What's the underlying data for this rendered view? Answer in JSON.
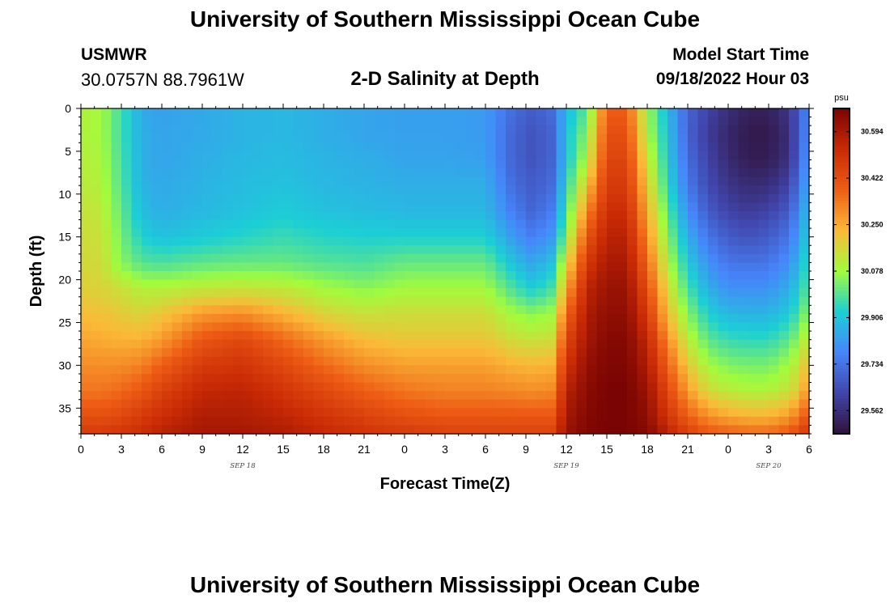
{
  "header": {
    "title": "University of Southern Mississippi Ocean Cube",
    "station": "USMWR",
    "coords": "30.0757N  88.7961W",
    "subtitle": "2-D Salinity at Depth",
    "start_label": "Model Start Time",
    "start_value": "09/18/2022 Hour 03"
  },
  "footer": {
    "title": "University of Southern Mississippi Ocean Cube"
  },
  "chart_data": {
    "type": "heatmap",
    "title": "2-D Salinity at Depth",
    "xlabel": "Forecast Time(Z)",
    "ylabel": "Depth (ft)",
    "x_range_hours": [
      0,
      54
    ],
    "x_tick_labels": [
      "0",
      "3",
      "6",
      "9",
      "12",
      "15",
      "18",
      "21",
      "0",
      "3",
      "6",
      "9",
      "12",
      "15",
      "18",
      "21",
      "0",
      "3",
      "6"
    ],
    "date_labels": [
      {
        "label": "SEP 18",
        "hour": 12
      },
      {
        "label": "SEP 19",
        "hour": 36
      },
      {
        "label": "SEP 20",
        "hour": 51
      }
    ],
    "y_range_ft": [
      0,
      38
    ],
    "y_ticks": [
      0,
      5,
      10,
      15,
      20,
      25,
      30,
      35
    ],
    "colorbar": {
      "unit": "psu",
      "min": 29.476,
      "max": 30.68,
      "tick_labels": [
        "30.594",
        "30.422",
        "30.250",
        "30.078",
        "29.906",
        "29.734",
        "29.562"
      ],
      "colors": [
        "#30123b",
        "#4145ab",
        "#4686fb",
        "#1ccfd5",
        "#a2fc3c",
        "#fbb938",
        "#ee5d15",
        "#c92a05",
        "#7a0403"
      ]
    },
    "depth_samples_ft": [
      0,
      3,
      6,
      9,
      12,
      15,
      18,
      21,
      24,
      27,
      30,
      33,
      36,
      38
    ],
    "time_samples_hours": [
      0,
      1.5,
      3,
      4.5,
      6,
      9,
      12,
      15,
      18,
      21,
      24,
      27,
      30,
      32,
      33.5,
      35,
      36,
      37.5,
      39,
      40.5,
      42,
      43.5,
      45,
      46.5,
      48,
      49.5,
      51,
      52.5,
      53.5,
      54
    ],
    "salinity_psu": [
      [
        30.1,
        30.08,
        29.97,
        29.85,
        29.83,
        29.85,
        29.87,
        29.88,
        29.86,
        29.84,
        29.83,
        29.83,
        29.82,
        29.72,
        29.68,
        29.72,
        29.88,
        30.0,
        30.38,
        30.38,
        30.08,
        29.88,
        29.7,
        29.62,
        29.56,
        29.52,
        29.52,
        29.58,
        29.72,
        29.8
      ],
      [
        30.1,
        30.08,
        29.97,
        29.86,
        29.84,
        29.85,
        29.87,
        29.88,
        29.86,
        29.84,
        29.83,
        29.83,
        29.82,
        29.7,
        29.66,
        29.7,
        29.9,
        30.05,
        30.42,
        30.42,
        30.1,
        29.9,
        29.7,
        29.6,
        29.54,
        29.5,
        29.5,
        29.56,
        29.72,
        29.82
      ],
      [
        30.11,
        30.09,
        29.98,
        29.86,
        29.84,
        29.86,
        29.88,
        29.89,
        29.87,
        29.86,
        29.84,
        29.84,
        29.83,
        29.7,
        29.66,
        29.7,
        29.9,
        30.1,
        30.45,
        30.45,
        30.15,
        29.92,
        29.72,
        29.62,
        29.55,
        29.51,
        29.51,
        29.57,
        29.74,
        29.84
      ],
      [
        30.12,
        30.1,
        29.99,
        29.87,
        29.85,
        29.87,
        29.89,
        29.9,
        29.88,
        29.87,
        29.86,
        29.86,
        29.86,
        29.72,
        29.68,
        29.72,
        29.94,
        30.2,
        30.48,
        30.48,
        30.2,
        29.95,
        29.75,
        29.64,
        29.58,
        29.55,
        29.56,
        29.62,
        29.78,
        29.88
      ],
      [
        30.14,
        30.12,
        30.01,
        29.89,
        29.86,
        29.88,
        29.9,
        29.92,
        29.9,
        29.89,
        29.88,
        29.88,
        29.88,
        29.76,
        29.7,
        29.76,
        29.98,
        30.3,
        30.52,
        30.52,
        30.25,
        30.0,
        29.8,
        29.68,
        29.62,
        29.6,
        29.62,
        29.68,
        29.82,
        29.92
      ],
      [
        30.15,
        30.14,
        30.03,
        29.93,
        29.9,
        29.92,
        29.94,
        29.96,
        29.94,
        29.93,
        29.93,
        29.93,
        29.93,
        29.82,
        29.76,
        29.82,
        30.05,
        30.4,
        30.56,
        30.56,
        30.3,
        30.05,
        29.86,
        29.74,
        29.68,
        29.66,
        29.68,
        29.74,
        29.86,
        29.96
      ],
      [
        30.16,
        30.15,
        30.05,
        29.99,
        29.98,
        30.0,
        30.01,
        30.01,
        29.99,
        29.98,
        30.01,
        30.01,
        30.01,
        29.9,
        29.84,
        29.9,
        30.15,
        30.48,
        30.59,
        30.59,
        30.36,
        30.1,
        29.92,
        29.8,
        29.74,
        29.73,
        29.74,
        29.8,
        29.9,
        30.0
      ],
      [
        30.18,
        30.17,
        30.14,
        30.1,
        30.1,
        30.12,
        30.13,
        30.12,
        30.08,
        30.05,
        30.08,
        30.08,
        30.08,
        29.98,
        29.92,
        29.98,
        30.25,
        30.55,
        30.62,
        30.62,
        30.42,
        30.16,
        29.98,
        29.86,
        29.8,
        29.8,
        29.8,
        29.86,
        29.94,
        30.04
      ],
      [
        30.22,
        30.21,
        30.19,
        30.17,
        30.2,
        30.28,
        30.3,
        30.24,
        30.17,
        30.14,
        30.15,
        30.15,
        30.15,
        30.08,
        30.05,
        30.08,
        30.36,
        30.58,
        30.64,
        30.64,
        30.48,
        30.22,
        30.05,
        29.93,
        29.88,
        29.87,
        29.87,
        29.92,
        30.0,
        30.1
      ],
      [
        30.26,
        30.25,
        30.24,
        30.24,
        30.28,
        30.4,
        30.44,
        30.36,
        30.28,
        30.22,
        30.2,
        30.2,
        30.2,
        30.15,
        30.14,
        30.15,
        30.44,
        30.6,
        30.66,
        30.66,
        30.54,
        30.3,
        30.12,
        30.0,
        29.96,
        29.95,
        29.95,
        30.0,
        30.08,
        30.18
      ],
      [
        30.3,
        30.3,
        30.3,
        30.32,
        30.38,
        30.48,
        30.5,
        30.44,
        30.36,
        30.3,
        30.27,
        30.27,
        30.27,
        30.24,
        30.23,
        30.24,
        30.5,
        30.63,
        30.67,
        30.67,
        30.58,
        30.38,
        30.2,
        30.08,
        30.04,
        30.03,
        30.03,
        30.08,
        30.16,
        30.26
      ],
      [
        30.34,
        30.34,
        30.36,
        30.4,
        30.46,
        30.54,
        30.55,
        30.5,
        30.44,
        30.38,
        30.34,
        30.32,
        30.32,
        30.31,
        30.3,
        30.31,
        30.56,
        30.65,
        30.68,
        30.68,
        30.62,
        30.44,
        30.28,
        30.16,
        30.12,
        30.1,
        30.1,
        30.14,
        30.22,
        30.34
      ],
      [
        30.42,
        30.42,
        30.44,
        30.48,
        30.52,
        30.58,
        30.58,
        30.55,
        30.5,
        30.46,
        30.42,
        30.4,
        30.4,
        30.4,
        30.4,
        30.4,
        30.6,
        30.66,
        30.68,
        30.68,
        30.64,
        30.5,
        30.38,
        30.3,
        30.26,
        30.24,
        30.24,
        30.28,
        30.36,
        30.44
      ],
      [
        30.48,
        30.48,
        30.5,
        30.52,
        30.56,
        30.6,
        30.6,
        30.58,
        30.54,
        30.5,
        30.48,
        30.46,
        30.46,
        30.46,
        30.46,
        30.46,
        30.62,
        30.67,
        30.68,
        30.68,
        30.66,
        30.56,
        30.46,
        30.4,
        30.38,
        30.36,
        30.36,
        30.4,
        30.46,
        30.52
      ]
    ]
  }
}
